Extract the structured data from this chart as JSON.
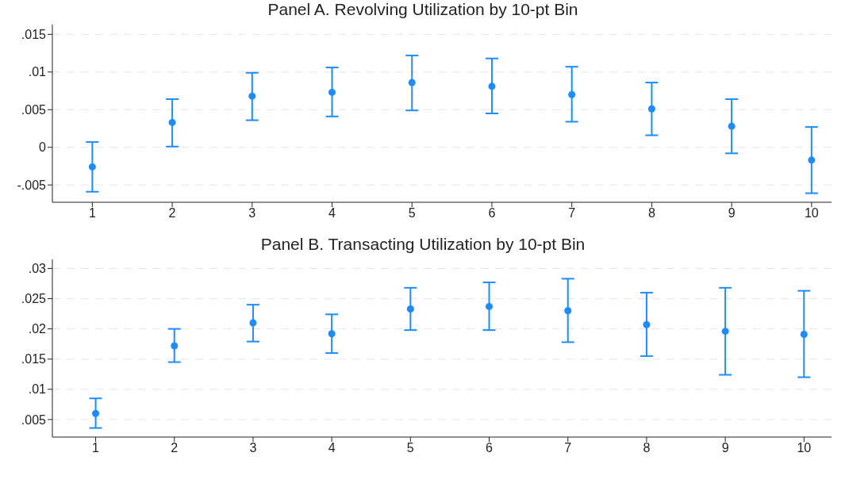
{
  "chart_data": [
    {
      "type": "scatter",
      "title": "Panel A. Revolving Utilization by 10-pt Bin",
      "x": [
        1,
        2,
        3,
        4,
        5,
        6,
        7,
        8,
        9,
        10
      ],
      "series": [
        {
          "color": "#1e8cff",
          "values": [
            -0.0026,
            0.0033,
            0.0068,
            0.0073,
            0.0086,
            0.0081,
            0.007,
            0.0051,
            0.0028,
            -0.0017
          ],
          "errors": [
            [
              -0.0059,
              0.0007
            ],
            [
              0.0001,
              0.0064
            ],
            [
              0.0036,
              0.0099
            ],
            [
              0.0041,
              0.0106
            ],
            [
              0.0049,
              0.0122
            ],
            [
              0.0045,
              0.0118
            ],
            [
              0.0034,
              0.0107
            ],
            [
              0.0016,
              0.0086
            ],
            [
              -0.0008,
              0.0064
            ],
            [
              -0.0061,
              0.0027
            ]
          ]
        }
      ],
      "xlim": [
        0.5,
        10.25
      ],
      "xticks": [
        1,
        2,
        3,
        4,
        5,
        6,
        7,
        8,
        9,
        10
      ],
      "ylim": [
        -0.0073,
        0.0163
      ],
      "yticks": [
        {
          "value": -0.005,
          "label": "-.005"
        },
        0,
        {
          "value": 0.005,
          "label": ".005"
        },
        {
          "value": 0.01,
          "label": ".01"
        },
        {
          "value": 0.015,
          "label": ".015"
        }
      ],
      "grid": "y",
      "marker": "circle",
      "legend": false
    },
    {
      "type": "scatter",
      "title": "Panel B. Transacting Utilization by 10-pt Bin",
      "x": [
        1,
        2,
        3,
        4,
        5,
        6,
        7,
        8,
        9,
        10
      ],
      "series": [
        {
          "color": "#1e8cff",
          "values": [
            0.006,
            0.0172,
            0.021,
            0.0192,
            0.0233,
            0.0237,
            0.023,
            0.0207,
            0.0196,
            0.0191
          ],
          "errors": [
            [
              0.0036,
              0.0085
            ],
            [
              0.0145,
              0.02
            ],
            [
              0.0179,
              0.024
            ],
            [
              0.016,
              0.0224
            ],
            [
              0.0198,
              0.0268
            ],
            [
              0.0198,
              0.0277
            ],
            [
              0.0178,
              0.0283
            ],
            [
              0.0155,
              0.026
            ],
            [
              0.0124,
              0.0268
            ],
            [
              0.012,
              0.0263
            ]
          ]
        }
      ],
      "xlim": [
        0.45,
        10.35
      ],
      "xticks": [
        1,
        2,
        3,
        4,
        5,
        6,
        7,
        8,
        9,
        10
      ],
      "ylim": [
        0.0021,
        0.0315
      ],
      "yticks": [
        {
          "value": 0.005,
          "label": ".005"
        },
        {
          "value": 0.01,
          "label": ".01"
        },
        {
          "value": 0.015,
          "label": ".015"
        },
        {
          "value": 0.02,
          "label": ".02"
        },
        {
          "value": 0.025,
          "label": ".025"
        },
        {
          "value": 0.03,
          "label": ".03"
        }
      ],
      "grid": "y",
      "marker": "circle",
      "legend": false
    }
  ]
}
